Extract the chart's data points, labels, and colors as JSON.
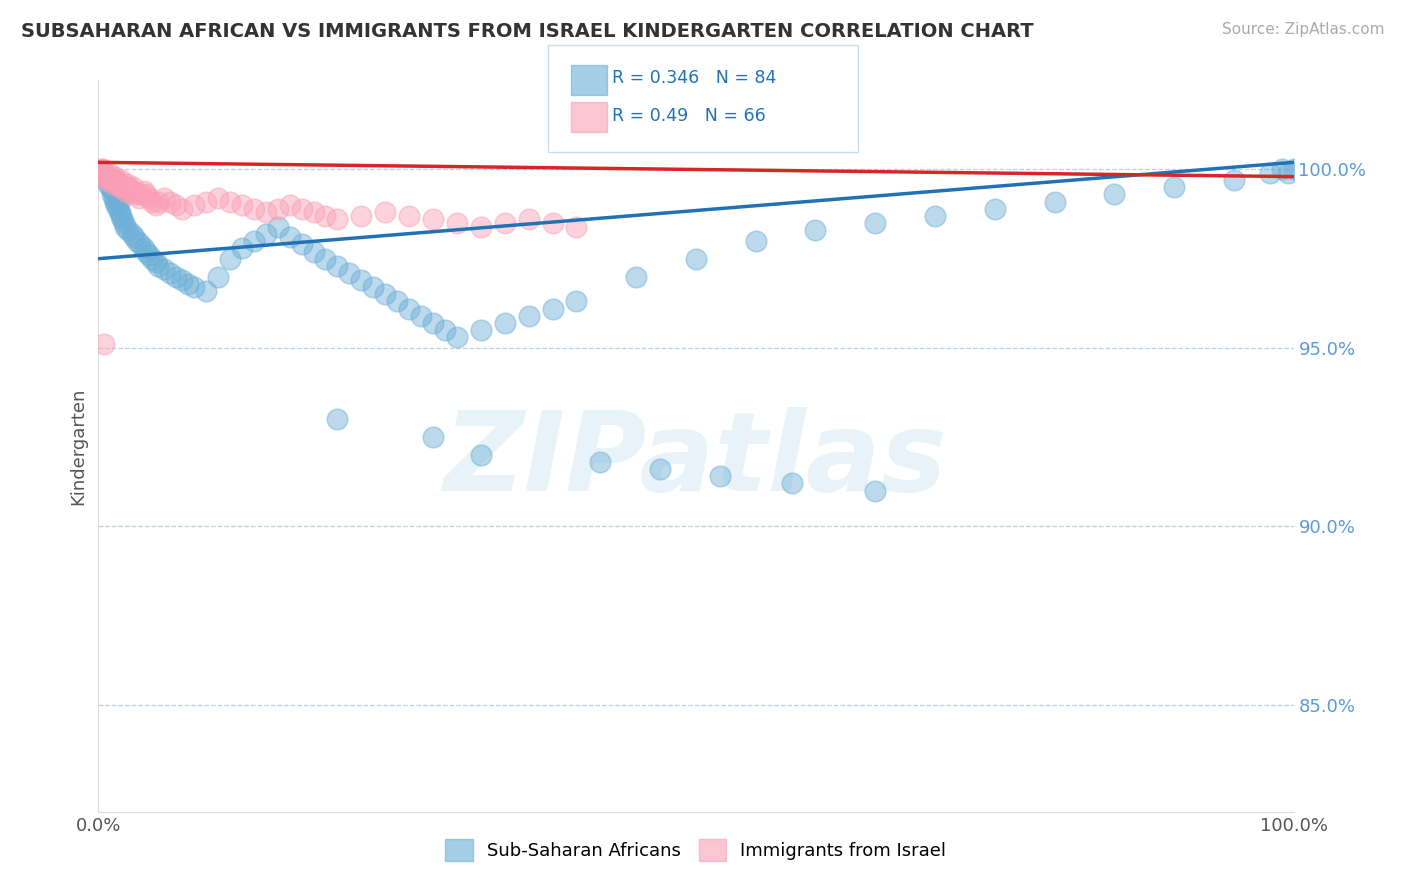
{
  "title": "SUBSAHARAN AFRICAN VS IMMIGRANTS FROM ISRAEL KINDERGARTEN CORRELATION CHART",
  "source": "Source: ZipAtlas.com",
  "ylabel": "Kindergarten",
  "legend_blue_label": "Sub-Saharan Africans",
  "legend_pink_label": "Immigrants from Israel",
  "blue_R": 0.346,
  "blue_N": 84,
  "pink_R": 0.49,
  "pink_N": 66,
  "blue_color": "#6baed6",
  "pink_color": "#fa9fb5",
  "blue_line_color": "#2171b5",
  "pink_line_color": "#d62728",
  "watermark_text": "ZIPatlas",
  "ytick_labels": [
    "100.0%",
    "95.0%",
    "90.0%",
    "85.0%"
  ],
  "ytick_values": [
    1.0,
    0.95,
    0.9,
    0.85
  ],
  "xlim": [
    0.0,
    1.0
  ],
  "ylim": [
    0.82,
    1.025
  ],
  "blue_line_start_y": 0.975,
  "blue_line_end_y": 1.002,
  "pink_line_start_y": 1.002,
  "pink_line_end_y": 0.998,
  "blue_x": [
    0.005,
    0.007,
    0.008,
    0.009,
    0.01,
    0.011,
    0.012,
    0.013,
    0.014,
    0.015,
    0.016,
    0.017,
    0.018,
    0.019,
    0.02,
    0.021,
    0.022,
    0.025,
    0.028,
    0.03,
    0.032,
    0.035,
    0.038,
    0.04,
    0.042,
    0.045,
    0.048,
    0.05,
    0.055,
    0.06,
    0.065,
    0.07,
    0.075,
    0.08,
    0.09,
    0.1,
    0.11,
    0.12,
    0.13,
    0.14,
    0.15,
    0.16,
    0.17,
    0.18,
    0.19,
    0.2,
    0.21,
    0.22,
    0.23,
    0.24,
    0.25,
    0.26,
    0.27,
    0.28,
    0.29,
    0.3,
    0.32,
    0.34,
    0.36,
    0.38,
    0.4,
    0.45,
    0.5,
    0.55,
    0.6,
    0.65,
    0.7,
    0.75,
    0.8,
    0.85,
    0.9,
    0.95,
    0.98,
    0.99,
    0.995,
    1.0,
    0.2,
    0.28,
    0.32,
    0.42,
    0.47,
    0.52,
    0.58,
    0.65
  ],
  "blue_y": [
    0.999,
    0.997,
    0.996,
    0.998,
    0.995,
    0.993,
    0.994,
    0.992,
    0.991,
    0.99,
    0.989,
    0.991,
    0.988,
    0.987,
    0.986,
    0.985,
    0.984,
    0.983,
    0.982,
    0.981,
    0.98,
    0.979,
    0.978,
    0.977,
    0.976,
    0.975,
    0.974,
    0.973,
    0.972,
    0.971,
    0.97,
    0.969,
    0.968,
    0.967,
    0.966,
    0.97,
    0.975,
    0.978,
    0.98,
    0.982,
    0.984,
    0.981,
    0.979,
    0.977,
    0.975,
    0.973,
    0.971,
    0.969,
    0.967,
    0.965,
    0.963,
    0.961,
    0.959,
    0.957,
    0.955,
    0.953,
    0.955,
    0.957,
    0.959,
    0.961,
    0.963,
    0.97,
    0.975,
    0.98,
    0.983,
    0.985,
    0.987,
    0.989,
    0.991,
    0.993,
    0.995,
    0.997,
    0.999,
    1.0,
    0.999,
    1.0,
    0.93,
    0.925,
    0.92,
    0.918,
    0.916,
    0.914,
    0.912,
    0.91
  ],
  "pink_x": [
    0.002,
    0.003,
    0.004,
    0.005,
    0.006,
    0.007,
    0.008,
    0.009,
    0.01,
    0.011,
    0.012,
    0.013,
    0.014,
    0.015,
    0.016,
    0.017,
    0.018,
    0.019,
    0.02,
    0.021,
    0.022,
    0.023,
    0.024,
    0.025,
    0.026,
    0.027,
    0.028,
    0.029,
    0.03,
    0.032,
    0.034,
    0.036,
    0.038,
    0.04,
    0.042,
    0.045,
    0.048,
    0.05,
    0.055,
    0.06,
    0.065,
    0.07,
    0.08,
    0.09,
    0.1,
    0.11,
    0.12,
    0.13,
    0.14,
    0.15,
    0.16,
    0.17,
    0.18,
    0.19,
    0.2,
    0.22,
    0.24,
    0.26,
    0.28,
    0.3,
    0.32,
    0.34,
    0.36,
    0.38,
    0.4,
    0.005
  ],
  "pink_y": [
    1.0,
    0.999,
    1.0,
    0.999,
    0.998,
    0.997,
    0.998,
    0.999,
    0.998,
    0.997,
    0.996,
    0.997,
    0.998,
    0.997,
    0.996,
    0.995,
    0.996,
    0.997,
    0.996,
    0.995,
    0.994,
    0.995,
    0.996,
    0.995,
    0.994,
    0.993,
    0.994,
    0.995,
    0.994,
    0.993,
    0.992,
    0.993,
    0.994,
    0.993,
    0.992,
    0.991,
    0.99,
    0.991,
    0.992,
    0.991,
    0.99,
    0.989,
    0.99,
    0.991,
    0.992,
    0.991,
    0.99,
    0.989,
    0.988,
    0.989,
    0.99,
    0.989,
    0.988,
    0.987,
    0.986,
    0.987,
    0.988,
    0.987,
    0.986,
    0.985,
    0.984,
    0.985,
    0.986,
    0.985,
    0.984,
    0.951
  ]
}
